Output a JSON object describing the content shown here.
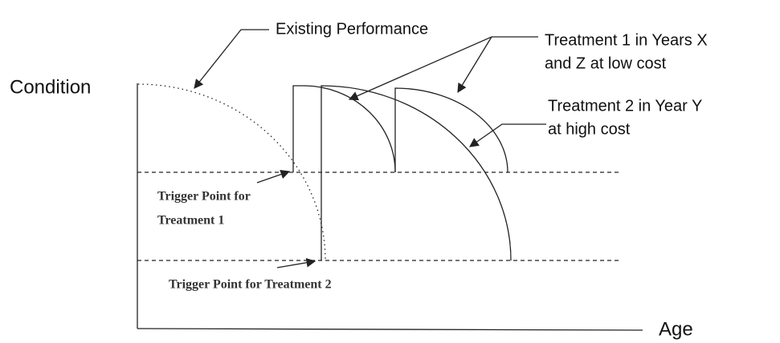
{
  "axes": {
    "y_label": "Condition",
    "x_label": "Age"
  },
  "annotations": {
    "existing": "Existing Performance",
    "treatment1": [
      "Treatment 1 in Years X",
      "and Z at low cost"
    ],
    "treatment2": [
      "Treatment 2 in Year Y",
      "at high cost"
    ],
    "trigger1": [
      "Trigger Point for",
      "Treatment 1"
    ],
    "trigger2": "Trigger Point for Treatment 2"
  }
}
